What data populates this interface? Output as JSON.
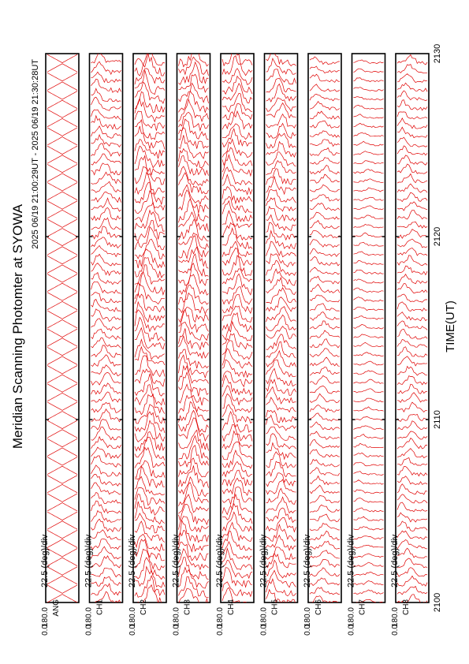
{
  "title": "Meridian Scanning Photomter at SYOWA",
  "time_range_text": "2025 06/19 21:00:29UT - 2025 06/19 21:30:28UT",
  "xlabel": "TIME(UT)",
  "line_color": "#e00000",
  "chart_data": {
    "type": "line",
    "title": "Meridian Scanning Photomter at SYOWA",
    "xlabel": "TIME(UT)",
    "xlim": [
      2100,
      2130
    ],
    "x_ticks": [
      "2100",
      "2110",
      "2120",
      "2130"
    ],
    "panels": [
      {
        "name": "ANG",
        "scale": "22.5 (deg)/div",
        "ytick_top": "180.0",
        "ytick_bottom": "0.0",
        "activity": 0.0
      },
      {
        "name": "CH1",
        "scale": "22.5 (deg)/div",
        "ytick_top": "180.0",
        "ytick_bottom": "0.0",
        "activity": 0.45
      },
      {
        "name": "CH2",
        "scale": "22.5 (deg)/div",
        "ytick_top": "180.0",
        "ytick_bottom": "0.0",
        "activity": 0.8
      },
      {
        "name": "CH3",
        "scale": "22.5 (deg)/div",
        "ytick_top": "180.0",
        "ytick_bottom": "0.0",
        "activity": 0.8
      },
      {
        "name": "CH4",
        "scale": "22.5 (deg)/div",
        "ytick_top": "180.0",
        "ytick_bottom": "0.0",
        "activity": 0.7
      },
      {
        "name": "CH5",
        "scale": "22.5 (deg)/div",
        "ytick_top": "180.0",
        "ytick_bottom": "0.0",
        "activity": 0.6
      },
      {
        "name": "CH6",
        "scale": "22.5 (deg)/div",
        "ytick_top": "180.0",
        "ytick_bottom": "0.0",
        "activity": 0.3
      },
      {
        "name": "CH7",
        "scale": "22.5 (deg)/div",
        "ytick_top": "180.0",
        "ytick_bottom": "0.0",
        "activity": 0.15
      },
      {
        "name": "CH8",
        "scale": "22.5 (deg)/div",
        "ytick_top": "180.0",
        "ytick_bottom": "0.0",
        "activity": 0.35
      }
    ],
    "trace_count": 60
  }
}
